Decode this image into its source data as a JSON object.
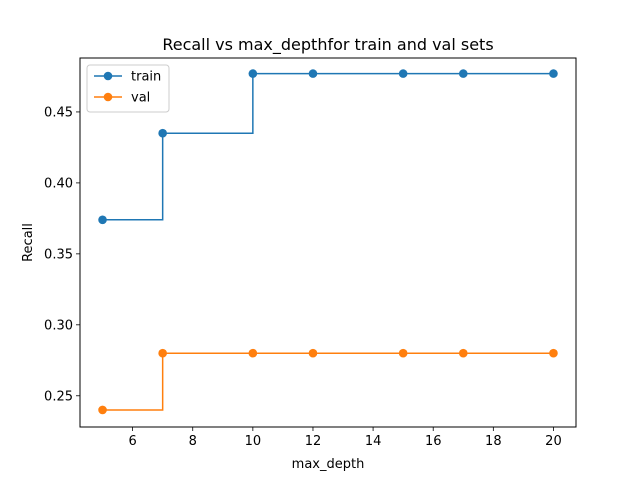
{
  "chart_data": {
    "type": "line",
    "title": "Recall vs max_depthfor train and val sets",
    "xlabel": "max_depth",
    "ylabel": "Recall",
    "x": [
      5,
      7,
      10,
      12,
      15,
      17,
      20
    ],
    "series": [
      {
        "name": "train",
        "color": "#1f77b4",
        "values": [
          0.374,
          0.435,
          0.477,
          0.477,
          0.477,
          0.477,
          0.477
        ]
      },
      {
        "name": "val",
        "color": "#ff7f0e",
        "values": [
          0.24,
          0.28,
          0.28,
          0.28,
          0.28,
          0.28,
          0.28
        ]
      }
    ],
    "xlim": [
      4.25,
      20.75
    ],
    "ylim": [
      0.228,
      0.488
    ],
    "xticks": [
      6,
      8,
      10,
      12,
      14,
      16,
      18,
      20
    ],
    "xtick_labels": [
      "6",
      "8",
      "10",
      "12",
      "14",
      "16",
      "18",
      "20"
    ],
    "yticks": [
      0.25,
      0.3,
      0.35,
      0.4,
      0.45
    ],
    "ytick_labels": [
      "0.25",
      "0.30",
      "0.35",
      "0.40",
      "0.45"
    ],
    "drawstyle": "steps-post",
    "marker": "circle",
    "grid": false,
    "legend_position": "top-left"
  }
}
